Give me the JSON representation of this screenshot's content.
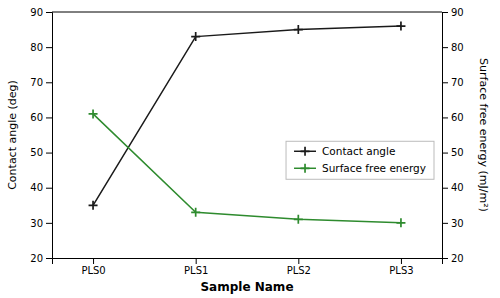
{
  "chart_data": {
    "type": "line",
    "xlabel": "Sample Name",
    "ylabel": "Contact angle (deg)",
    "y2label": "Surface free energy (mJ/m²)",
    "categories": [
      "PLS0",
      "PLS1",
      "PLS2",
      "PLS3"
    ],
    "series": [
      {
        "name": "Contact angle",
        "color": "#1a1a1a",
        "marker": "plus",
        "values": [
          35,
          83,
          85,
          86
        ]
      },
      {
        "name": "Surface free energy",
        "color": "#2e8b2e",
        "marker": "plus",
        "axis": "y2",
        "values": [
          61,
          33,
          31,
          30
        ]
      }
    ],
    "ylim": [
      20,
      90
    ],
    "yticks": [
      20,
      30,
      40,
      50,
      60,
      70,
      80,
      90
    ],
    "y2lim": [
      20,
      90
    ],
    "y2ticks": [
      20,
      30,
      40,
      50,
      60,
      70,
      80,
      90
    ],
    "grid": false,
    "legend": "lower right"
  }
}
